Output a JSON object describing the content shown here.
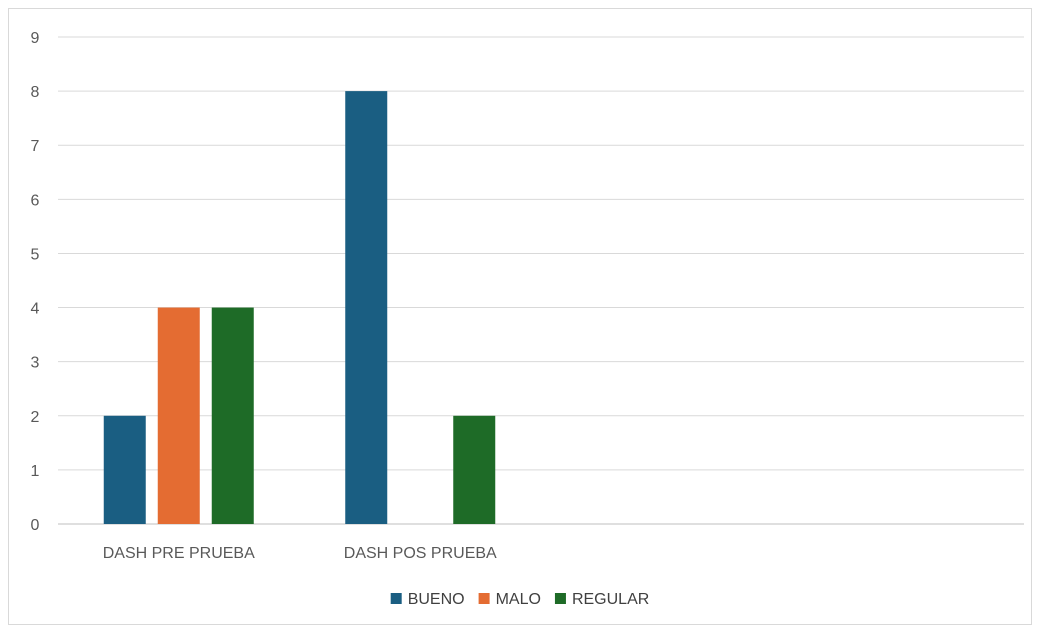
{
  "chart_data": {
    "type": "bar",
    "title": "",
    "xlabel": "",
    "ylabel": "",
    "categories": [
      "DASH PRE PRUEBA",
      "DASH POS PRUEBA",
      "",
      ""
    ],
    "series": [
      {
        "name": "BUENO",
        "values": [
          2,
          8,
          null,
          null
        ],
        "color": "#1a5e82"
      },
      {
        "name": "MALO",
        "values": [
          4,
          0,
          null,
          null
        ],
        "color": "#e46c32"
      },
      {
        "name": "REGULAR",
        "values": [
          4,
          2,
          null,
          null
        ],
        "color": "#1e6b27"
      }
    ],
    "ylim": [
      0,
      9
    ],
    "yticks": [
      0,
      1,
      2,
      3,
      4,
      5,
      6,
      7,
      8,
      9
    ],
    "grid": true,
    "legend": "bottom"
  },
  "colors": {
    "grid": "#d9d9d9",
    "axis": "#bfbfbf",
    "tick_text": "#595959"
  }
}
